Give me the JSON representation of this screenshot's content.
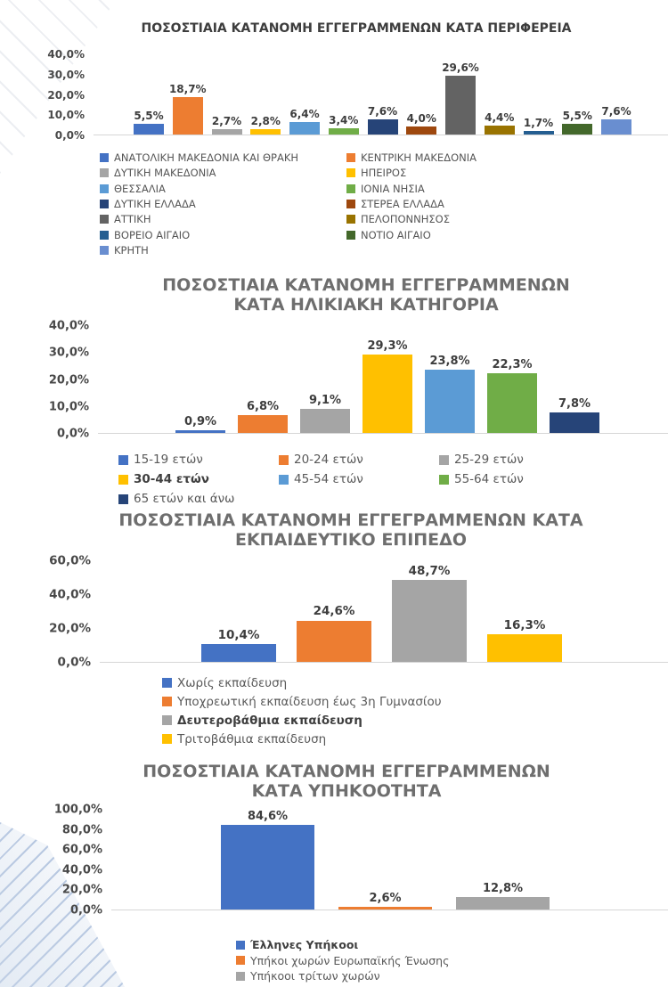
{
  "decor": {
    "stripe_blue": "#7a98c6",
    "stripe_gray": "#96a2b6",
    "background": "#ffffff"
  },
  "chart_data": [
    {
      "type": "bar",
      "title": "ΠΟΣΟΣΤΙΑΙΑ ΚΑΤΑΝΟΜΗ ΕΓΓΕΓΡΑΜΜΕΝΩΝ ΚΑΤΑ ΠΕΡΙΦΕΡΕΙΑ",
      "categories": [
        "ΑΝΑΤΟΛΙΚΗ ΜΑΚΕΔΟΝΙΑ ΚΑΙ ΘΡΑΚΗ",
        "ΚΕΝΤΡΙΚΗ ΜΑΚΕΔΟΝΙΑ",
        "ΔΥΤΙΚΗ ΜΑΚΕΔΟΝΙΑ",
        "ΗΠΕΙΡΟΣ",
        "ΘΕΣΣΑΛΙΑ",
        "ΙΟΝΙΑ ΝΗΣΙΑ",
        "ΔΥΤΙΚΗ ΕΛΛΑΔΑ",
        "ΣΤΕΡΕΑ ΕΛΛΑΔΑ",
        "ΑΤΤΙΚΗ",
        "ΠΕΛΟΠΟΝΝΗΣΟΣ",
        "ΒΟΡΕΙΟ ΑΙΓΑΙΟ",
        "ΝΟΤΙΟ ΑΙΓΑΙΟ",
        "ΚΡΗΤΗ"
      ],
      "values": [
        5.5,
        18.7,
        2.7,
        2.8,
        6.4,
        3.4,
        7.6,
        4.0,
        29.6,
        4.4,
        1.7,
        5.5,
        7.6
      ],
      "value_labels": [
        "5,5%",
        "18,7%",
        "2,7%",
        "2,8%",
        "6,4%",
        "3,4%",
        "7,6%",
        "4,0%",
        "29,6%",
        "4,4%",
        "1,7%",
        "5,5%",
        "7,6%"
      ],
      "colors": [
        "#4472C4",
        "#ED7D31",
        "#A5A5A5",
        "#FFC000",
        "#5B9BD5",
        "#70AD47",
        "#264478",
        "#9E480E",
        "#636363",
        "#997300",
        "#255E91",
        "#43682B",
        "#698ED0"
      ],
      "ylim": [
        0,
        40
      ],
      "yticks": [
        "40,0%",
        "30,0%",
        "20,0%",
        "10,0%",
        "0,0%"
      ],
      "grid": false,
      "legend_position": "bottom",
      "legend_columns": 2,
      "bold_legend_index": -1
    },
    {
      "type": "bar",
      "title": "ΠΟΣΟΣΤΙΑΙΑ ΚΑΤΑΝΟΜΗ ΕΓΓΕΓΡΑΜΜΕΝΩΝ\nΚΑΤΑ ΗΛΙΚΙΑΚΗ ΚΑΤΗΓΟΡΙΑ",
      "categories": [
        "15-19 ετών",
        "20-24 ετών",
        "25-29 ετών",
        "30-44 ετών",
        "45-54 ετών",
        "55-64 ετών",
        "65 ετών και άνω"
      ],
      "values": [
        0.9,
        6.8,
        9.1,
        29.3,
        23.8,
        22.3,
        7.8
      ],
      "value_labels": [
        "0,9%",
        "6,8%",
        "9,1%",
        "29,3%",
        "23,8%",
        "22,3%",
        "7,8%"
      ],
      "colors": [
        "#4472C4",
        "#ED7D31",
        "#A5A5A5",
        "#FFC000",
        "#5B9BD5",
        "#70AD47",
        "#264478"
      ],
      "ylim": [
        0,
        40
      ],
      "yticks": [
        "40,0%",
        "30,0%",
        "20,0%",
        "10,0%",
        "0,0%"
      ],
      "grid": false,
      "legend_position": "bottom",
      "legend_columns": 3,
      "bold_legend_index": 3
    },
    {
      "type": "bar",
      "title": "ΠΟΣΟΣΤΙΑΙΑ ΚΑΤΑΝΟΜΗ ΕΓΓΕΓΡΑΜΜΕΝΩΝ ΚΑΤΑ\nΕΚΠΑΙΔΕΥΤΙΚΟ ΕΠΙΠΕΔΟ",
      "categories": [
        "Χωρίς εκπαίδευση",
        "Υποχρεωτική εκπαίδευση έως 3η Γυμνασίου",
        "Δευτεροβάθμια εκπαίδευση",
        "Τριτοβάθμια εκπαίδευση"
      ],
      "values": [
        10.4,
        24.6,
        48.7,
        16.3
      ],
      "value_labels": [
        "10,4%",
        "24,6%",
        "48,7%",
        "16,3%"
      ],
      "colors": [
        "#4472C4",
        "#ED7D31",
        "#A5A5A5",
        "#FFC000"
      ],
      "ylim": [
        0,
        60
      ],
      "yticks": [
        "60,0%",
        "40,0%",
        "20,0%",
        "0,0%"
      ],
      "grid": false,
      "legend_position": "bottom",
      "legend_columns": 1,
      "bold_legend_index": 2
    },
    {
      "type": "bar",
      "title": "ΠΟΣΟΣΤΙΑΙΑ ΚΑΤΑΝΟΜΗ  ΕΓΓΕΓΡΑΜΜΕΝΩΝ\nΚΑΤΑ ΥΠΗΚΟΟΤΗΤΑ",
      "categories": [
        "Έλληνες Υπήκοοι",
        "Υπήκοι χωρών Ευρωπαϊκής Ένωσης",
        "Υπήκοοι τρίτων χωρών"
      ],
      "values": [
        84.6,
        2.6,
        12.8
      ],
      "value_labels": [
        "84,6%",
        "2,6%",
        "12,8%"
      ],
      "colors": [
        "#4472C4",
        "#ED7D31",
        "#A5A5A5"
      ],
      "ylim": [
        0,
        100
      ],
      "yticks": [
        "100,0%",
        "80,0%",
        "60,0%",
        "40,0%",
        "20,0%",
        "0,0%"
      ],
      "grid": false,
      "legend_position": "bottom",
      "legend_columns": 1,
      "bold_legend_index": 0
    }
  ]
}
